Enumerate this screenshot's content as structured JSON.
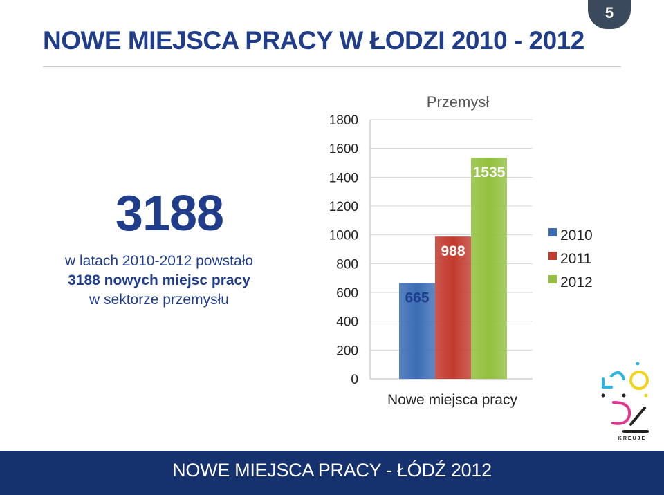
{
  "slide": {
    "title": "NOWE MIEJSCA PRACY W ŁODZI 2010 - 2012",
    "page_number": "5",
    "big_number": "3188",
    "description_line1": "w latach 2010-2012 powstało",
    "description_line2": "3188 nowych miejsc pracy",
    "description_line3": "w sektorze przemysłu",
    "footer": "NOWE MIEJSCA PRACY - ŁÓDŹ 2012",
    "logo_text": "KREUJE"
  },
  "chart_data": {
    "type": "bar",
    "title": "Przemysł",
    "categories": [
      "Nowe miejsca pracy"
    ],
    "series": [
      {
        "name": "2010",
        "values": [
          665
        ],
        "color": "#3a6db5"
      },
      {
        "name": "2011",
        "values": [
          988
        ],
        "color": "#c23a2e"
      },
      {
        "name": "2012",
        "values": [
          1535
        ],
        "color": "#92c03e"
      }
    ],
    "y_ticks": [
      "0",
      "200",
      "400",
      "600",
      "800",
      "1000",
      "1200",
      "1400",
      "1600",
      "1800"
    ],
    "ylim": [
      0,
      1800
    ],
    "grid": true,
    "legend": "right",
    "data_labels": [
      "665",
      "988",
      "1535"
    ]
  }
}
